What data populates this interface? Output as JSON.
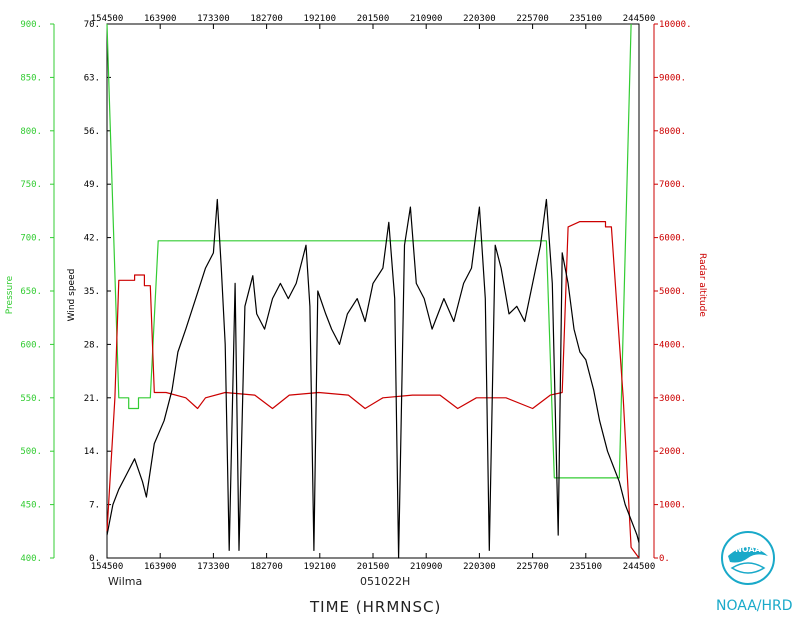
{
  "chart_data": {
    "type": "line",
    "title": "",
    "xlabel": "TIME (HRMNSC)",
    "footer_left": "Wilma",
    "footer_center": "051022H",
    "organization": "NOAA/HRD",
    "x_ticks": [
      "154500",
      "163900",
      "173300",
      "182700",
      "192100",
      "201500",
      "210900",
      "220300",
      "225700",
      "235100",
      "244500"
    ],
    "x_range_minutes": [
      0,
      540
    ],
    "axes": {
      "pressure": {
        "label": "Pressure",
        "color": "#33cc33",
        "min": 400,
        "max": 900,
        "ticks": [
          "400.",
          "450.",
          "500.",
          "550.",
          "600.",
          "650.",
          "700.",
          "750.",
          "800.",
          "850.",
          "900."
        ]
      },
      "wind": {
        "label": "Wind speed",
        "color": "#000000",
        "min": 0,
        "max": 70,
        "ticks": [
          "0.",
          "7.",
          "14.",
          "21.",
          "28.",
          "35.",
          "42.",
          "49.",
          "56.",
          "63.",
          "70."
        ]
      },
      "radar": {
        "label": "Radar altitude",
        "color": "#cc0000",
        "min": 0,
        "max": 10000,
        "ticks": [
          "0.",
          "1000.",
          "2000.",
          "3000.",
          "4000.",
          "5000.",
          "6000.",
          "7000.",
          "8000.",
          "9000.",
          "10000."
        ]
      }
    },
    "series": [
      {
        "axis": "pressure",
        "color": "#33cc33",
        "points": [
          [
            0,
            900
          ],
          [
            12,
            550
          ],
          [
            22,
            550
          ],
          [
            22,
            540
          ],
          [
            32,
            540
          ],
          [
            32,
            550
          ],
          [
            44,
            550
          ],
          [
            52,
            697
          ],
          [
            290,
            697
          ],
          [
            446,
            697
          ],
          [
            454,
            475
          ],
          [
            520,
            475
          ],
          [
            525,
            650
          ],
          [
            532,
            900
          ]
        ]
      },
      {
        "axis": "radar",
        "color": "#cc0000",
        "points": [
          [
            0,
            500
          ],
          [
            8,
            3000
          ],
          [
            12,
            5200
          ],
          [
            28,
            5200
          ],
          [
            28,
            5300
          ],
          [
            38,
            5300
          ],
          [
            38,
            5100
          ],
          [
            44,
            5100
          ],
          [
            48,
            3100
          ],
          [
            60,
            3100
          ],
          [
            80,
            3000
          ],
          [
            92,
            2800
          ],
          [
            100,
            3000
          ],
          [
            120,
            3100
          ],
          [
            150,
            3050
          ],
          [
            168,
            2800
          ],
          [
            185,
            3050
          ],
          [
            215,
            3100
          ],
          [
            245,
            3050
          ],
          [
            262,
            2800
          ],
          [
            280,
            3000
          ],
          [
            310,
            3050
          ],
          [
            338,
            3050
          ],
          [
            356,
            2800
          ],
          [
            375,
            3000
          ],
          [
            405,
            3000
          ],
          [
            432,
            2800
          ],
          [
            450,
            3050
          ],
          [
            462,
            3100
          ],
          [
            468,
            6200
          ],
          [
            480,
            6300
          ],
          [
            506,
            6300
          ],
          [
            506,
            6200
          ],
          [
            512,
            6200
          ],
          [
            524,
            3000
          ],
          [
            532,
            200
          ],
          [
            540,
            0
          ]
        ]
      },
      {
        "axis": "wind",
        "color": "#000000",
        "points": [
          [
            0,
            3
          ],
          [
            6,
            7
          ],
          [
            12,
            9
          ],
          [
            20,
            11
          ],
          [
            28,
            13
          ],
          [
            36,
            10
          ],
          [
            40,
            8
          ],
          [
            48,
            15
          ],
          [
            58,
            18
          ],
          [
            66,
            22
          ],
          [
            72,
            27
          ],
          [
            80,
            30
          ],
          [
            90,
            34
          ],
          [
            100,
            38
          ],
          [
            108,
            40
          ],
          [
            112,
            47
          ],
          [
            116,
            38
          ],
          [
            120,
            28
          ],
          [
            124,
            1
          ],
          [
            128,
            24
          ],
          [
            130,
            36
          ],
          [
            134,
            1
          ],
          [
            140,
            33
          ],
          [
            148,
            37
          ],
          [
            152,
            32
          ],
          [
            160,
            30
          ],
          [
            168,
            34
          ],
          [
            176,
            36
          ],
          [
            184,
            34
          ],
          [
            192,
            36
          ],
          [
            198,
            39
          ],
          [
            202,
            41
          ],
          [
            206,
            33
          ],
          [
            210,
            1
          ],
          [
            214,
            35
          ],
          [
            222,
            32
          ],
          [
            228,
            30
          ],
          [
            236,
            28
          ],
          [
            244,
            32
          ],
          [
            254,
            34
          ],
          [
            262,
            31
          ],
          [
            270,
            36
          ],
          [
            280,
            38
          ],
          [
            286,
            44
          ],
          [
            292,
            34
          ],
          [
            296,
            0
          ],
          [
            302,
            41
          ],
          [
            308,
            46
          ],
          [
            314,
            36
          ],
          [
            322,
            34
          ],
          [
            330,
            30
          ],
          [
            342,
            34
          ],
          [
            352,
            31
          ],
          [
            362,
            36
          ],
          [
            370,
            38
          ],
          [
            378,
            46
          ],
          [
            384,
            34
          ],
          [
            388,
            1
          ],
          [
            394,
            41
          ],
          [
            400,
            38
          ],
          [
            408,
            32
          ],
          [
            416,
            33
          ],
          [
            424,
            31
          ],
          [
            432,
            36
          ],
          [
            440,
            41
          ],
          [
            446,
            47
          ],
          [
            452,
            36
          ],
          [
            458,
            3
          ],
          [
            462,
            40
          ],
          [
            468,
            36
          ],
          [
            474,
            30
          ],
          [
            480,
            27
          ],
          [
            486,
            26
          ],
          [
            494,
            22
          ],
          [
            500,
            18
          ],
          [
            508,
            14
          ],
          [
            514,
            12
          ],
          [
            520,
            10
          ],
          [
            526,
            7
          ],
          [
            532,
            5
          ],
          [
            538,
            3
          ],
          [
            540,
            2
          ]
        ]
      }
    ]
  }
}
